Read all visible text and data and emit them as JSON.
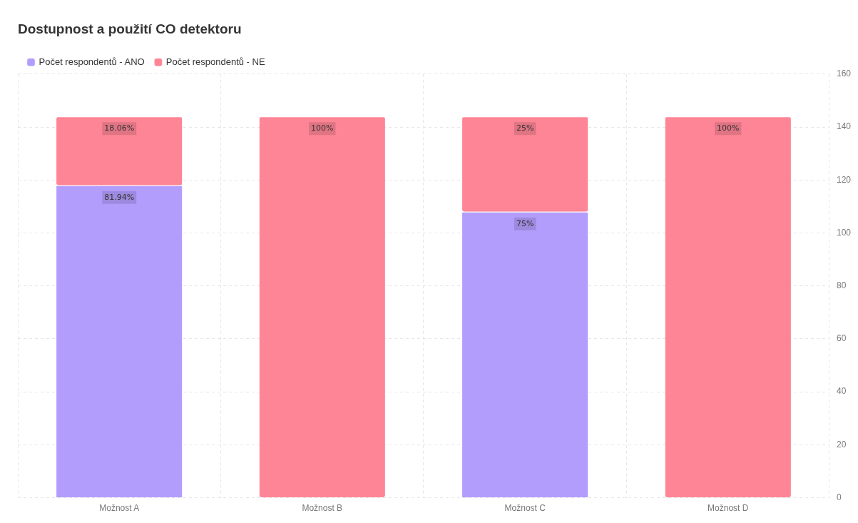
{
  "chart_data": {
    "type": "bar",
    "title": "Dostupnost a použití CO detektoru",
    "categories": [
      "Možnost A",
      "Možnost B",
      "Možnost C",
      "Možnost D"
    ],
    "stacked": true,
    "ylim": [
      0,
      160
    ],
    "yticks": [
      0,
      20,
      40,
      60,
      80,
      100,
      120,
      140,
      160
    ],
    "grid": true,
    "legend": "top left",
    "series": [
      {
        "name": "Počet respondentů - ANO",
        "color": "#b39dfc",
        "values": [
          118,
          0,
          108,
          0
        ]
      },
      {
        "name": "Počet respondentů - NE",
        "color": "#fe8596",
        "values": [
          26,
          144,
          36,
          144
        ]
      }
    ],
    "annotations": [
      {
        "text": "81.94%",
        "x": "Možnost A",
        "y": 118
      },
      {
        "text": "18.06%",
        "x": "Možnost A",
        "y": 144
      },
      {
        "text": "100%",
        "x": "Možnost B",
        "y": 144
      },
      {
        "text": "75%",
        "x": "Možnost C",
        "y": 108
      },
      {
        "text": "25%",
        "x": "Možnost C",
        "y": 144
      },
      {
        "text": "100%",
        "x": "Možnost D",
        "y": 144
      }
    ]
  }
}
